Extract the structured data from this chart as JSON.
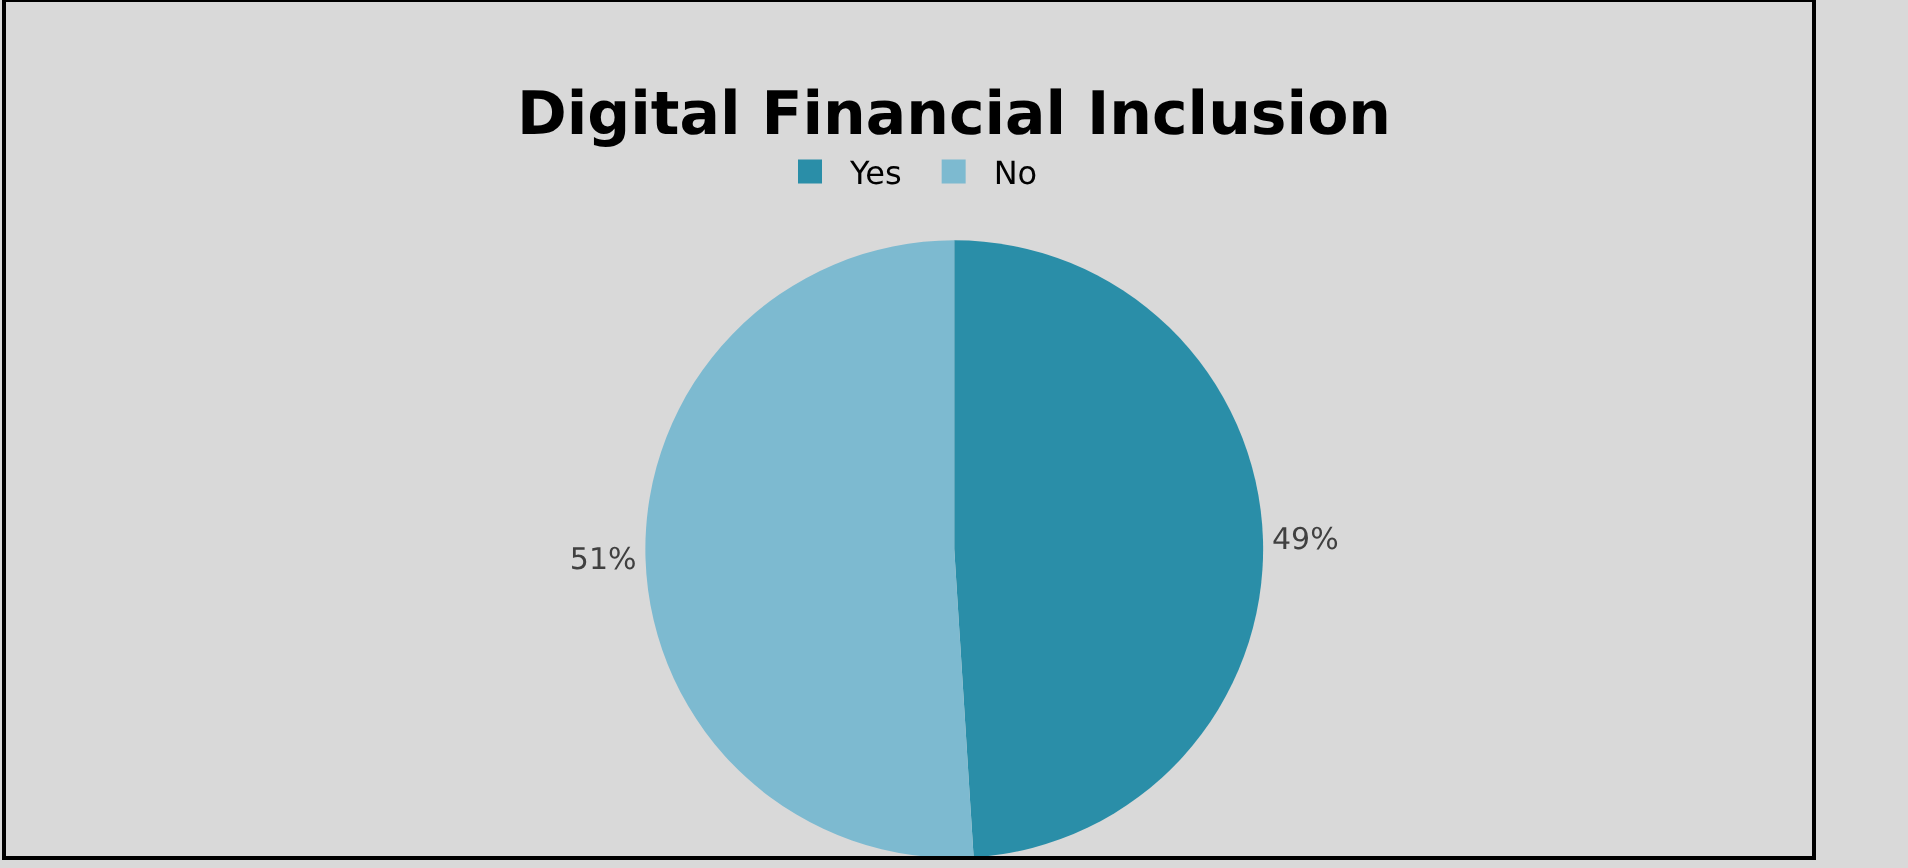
{
  "chart_data": {
    "type": "pie",
    "title": "Digital Financial Inclusion",
    "categories": [
      "Yes",
      "No"
    ],
    "values": [
      49,
      51
    ],
    "colors": [
      "#2a8ea8",
      "#7dbad0"
    ],
    "value_labels": [
      "49%",
      "51%"
    ],
    "legend": "top"
  }
}
